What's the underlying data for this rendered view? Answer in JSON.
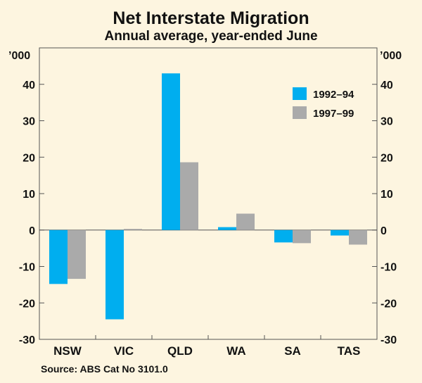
{
  "chart_data": {
    "type": "bar",
    "title": "Net Interstate Migration",
    "subtitle": "Annual average, year-ended June",
    "ylabel_left": "’000",
    "ylabel_right": "’000",
    "categories": [
      "NSW",
      "VIC",
      "QLD",
      "WA",
      "SA",
      "TAS"
    ],
    "series": [
      {
        "name": "1992–94",
        "color": "#00aeef",
        "values": [
          -14.8,
          -24.5,
          43.0,
          0.8,
          -3.4,
          -1.5
        ]
      },
      {
        "name": "1997–99",
        "color": "#aaaaaa",
        "values": [
          -13.4,
          0.3,
          18.6,
          4.5,
          -3.6,
          -4.0
        ]
      }
    ],
    "ylim": [
      -30,
      50
    ],
    "yticks": [
      -30,
      -20,
      -10,
      0,
      10,
      20,
      30,
      40
    ],
    "legend_position": "top-right",
    "grid": false
  },
  "source": "Source:  ABS Cat No 3101.0"
}
